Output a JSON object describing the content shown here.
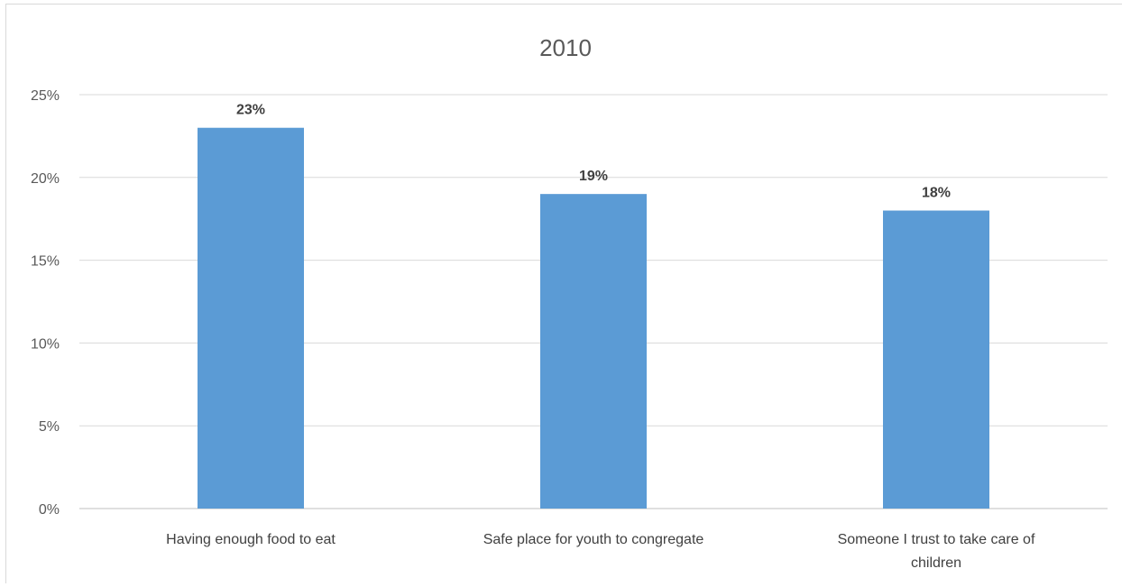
{
  "chart_data": {
    "type": "bar",
    "title": "2010",
    "categories": [
      "Having enough food to eat",
      "Safe place for youth to congregate",
      "Someone I trust to take care of children"
    ],
    "category_label_lines": [
      [
        "Having enough food to eat"
      ],
      [
        "Safe place for youth to congregate"
      ],
      [
        "Someone I trust to take care of",
        "children"
      ]
    ],
    "values": [
      23,
      19,
      18
    ],
    "data_labels": [
      "23%",
      "19%",
      "18%"
    ],
    "ylim": [
      0,
      25
    ],
    "yticks": [
      0,
      5,
      10,
      15,
      20,
      25
    ],
    "ytick_labels": [
      "0%",
      "5%",
      "10%",
      "15%",
      "20%",
      "25%"
    ],
    "xlabel": "",
    "ylabel": "",
    "grid": true,
    "legend": "none",
    "colors": {
      "bar": "#5b9bd5",
      "grid": "#d9d9d9",
      "axis": "#bfbfbf"
    }
  }
}
